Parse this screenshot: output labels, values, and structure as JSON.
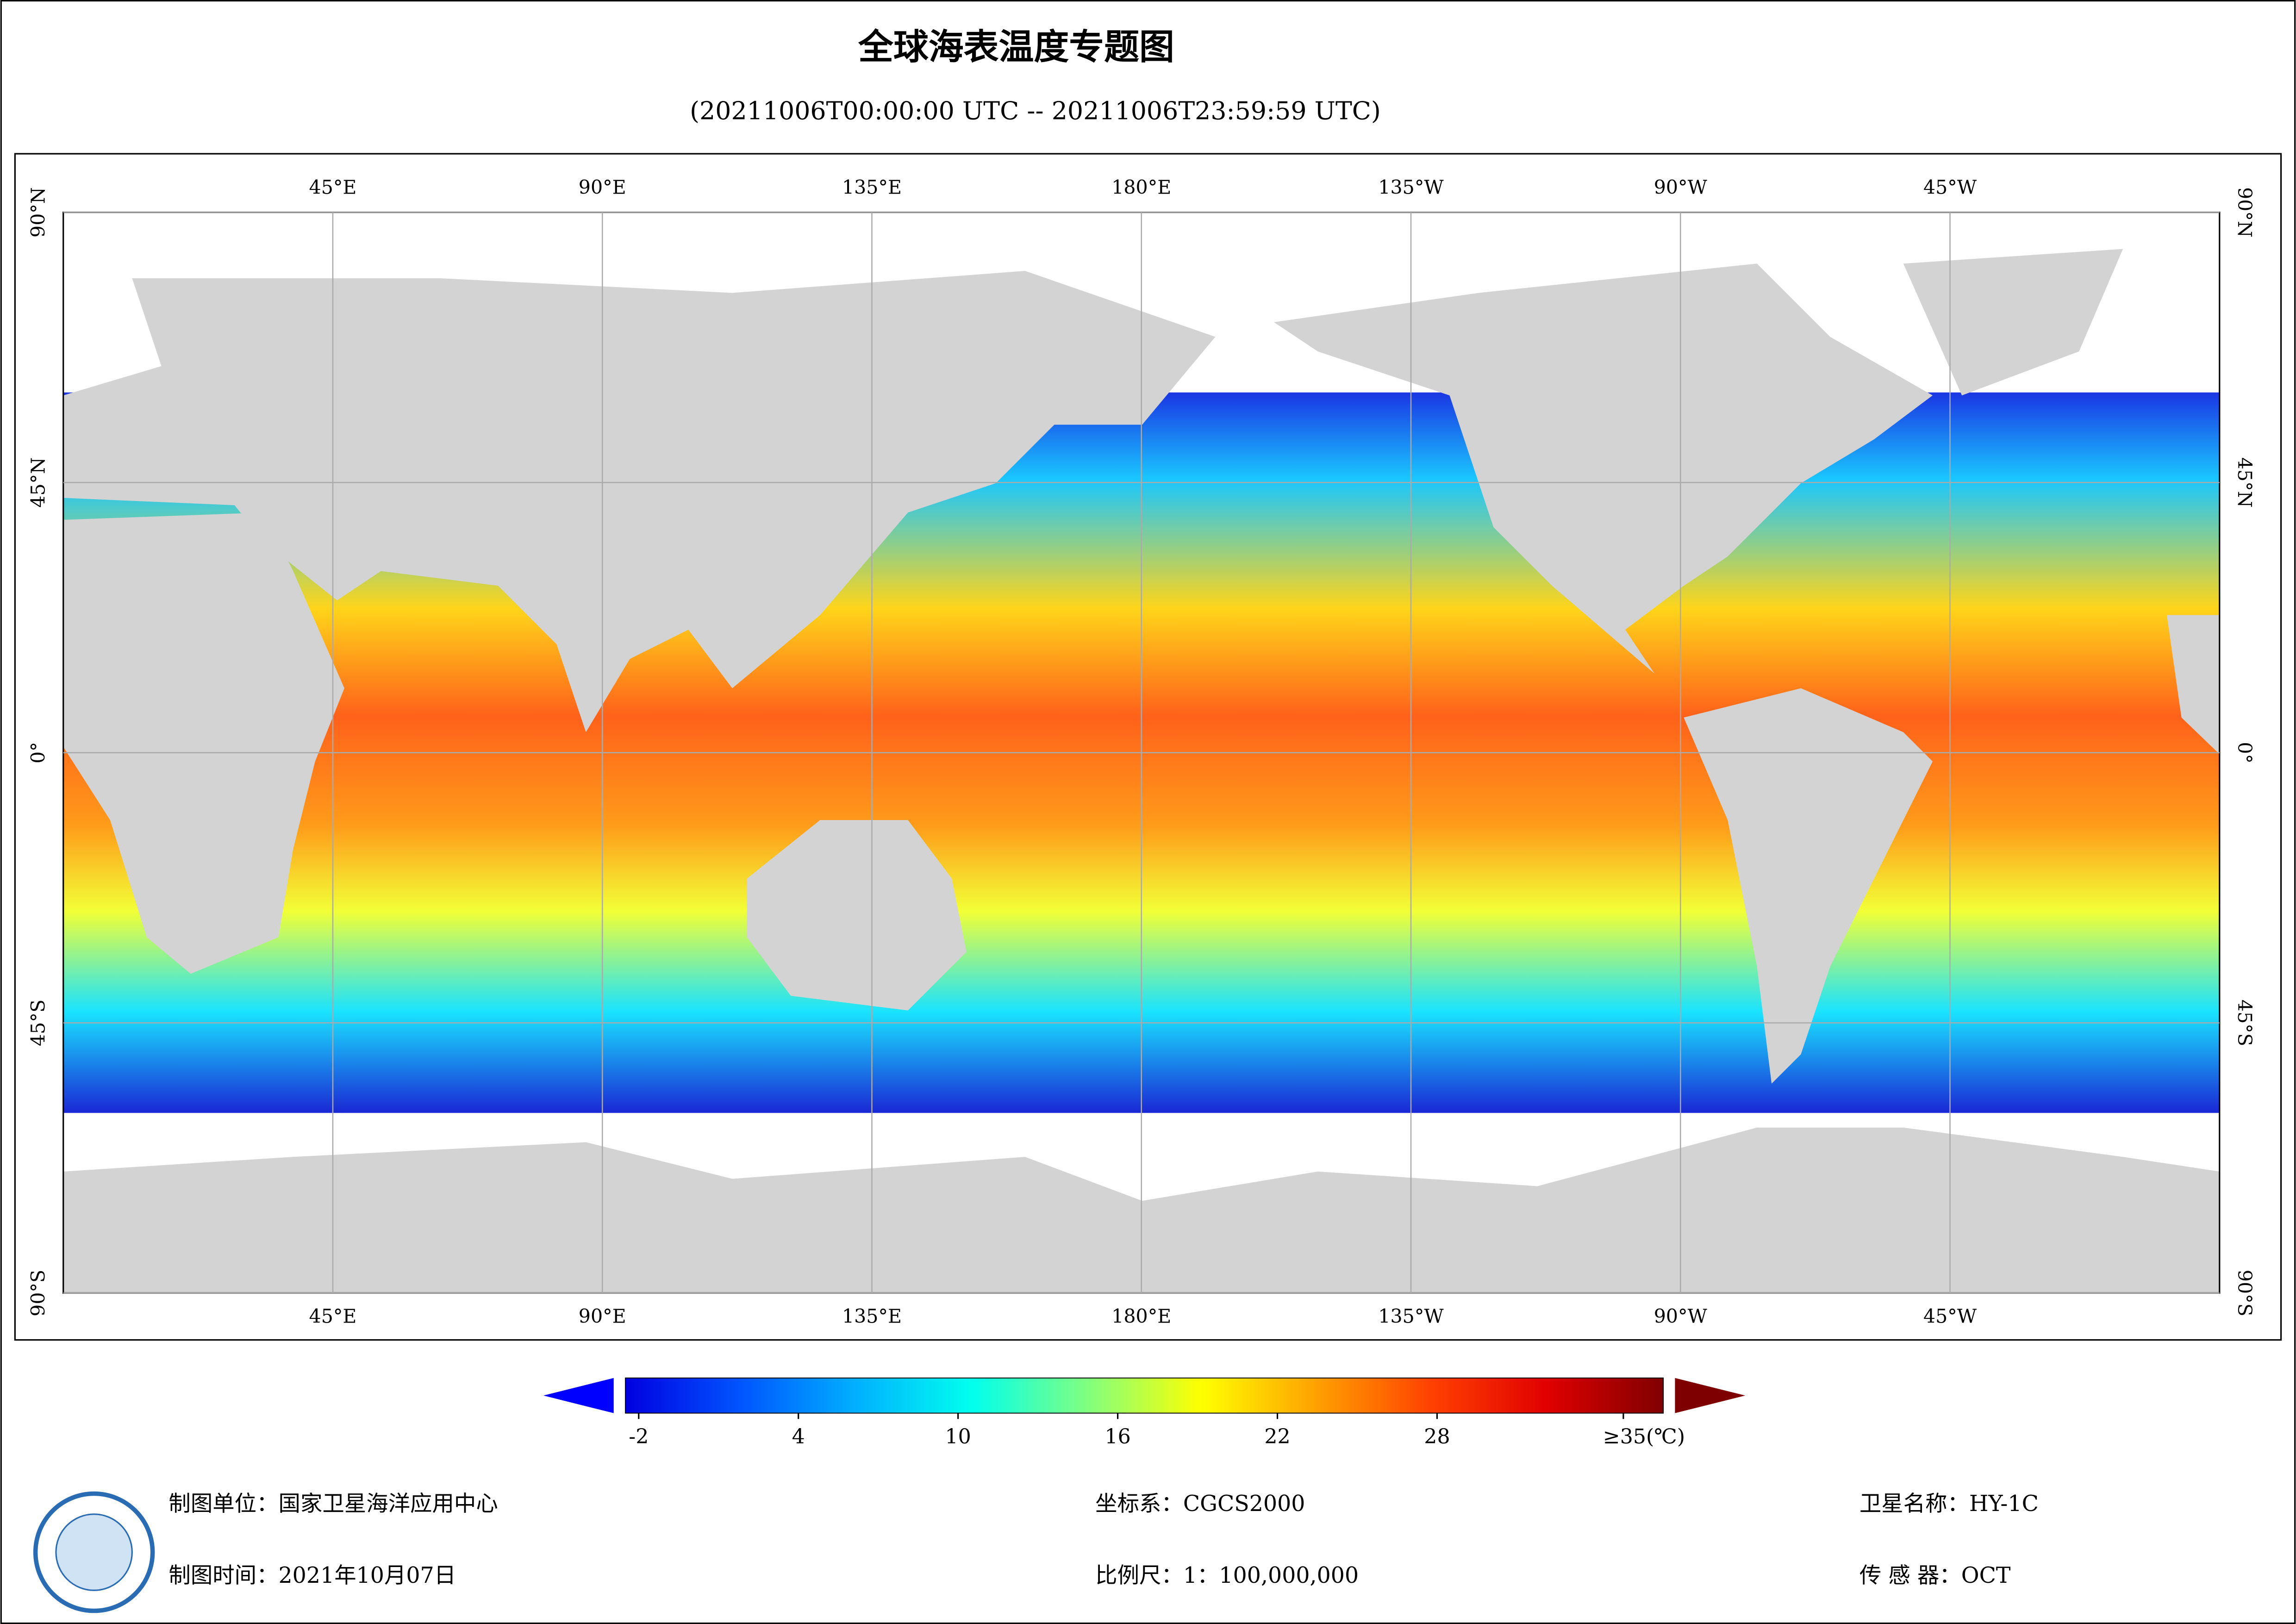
{
  "title": "全球海表温度专题图",
  "subtitle": "(20211006T00:00:00 UTC -- 20211006T23:59:59 UTC)",
  "map": {
    "lon_range": [
      0,
      360
    ],
    "lat_range": [
      -90,
      90
    ],
    "lon_ticks": [
      {
        "value": 45,
        "label": "45°E"
      },
      {
        "value": 90,
        "label": "90°E"
      },
      {
        "value": 135,
        "label": "135°E"
      },
      {
        "value": 180,
        "label": "180°E"
      },
      {
        "value": 225,
        "label": "135°W"
      },
      {
        "value": 270,
        "label": "90°W"
      },
      {
        "value": 315,
        "label": "45°W"
      }
    ],
    "lat_ticks": [
      {
        "value": 90,
        "label": "90°N"
      },
      {
        "value": 45,
        "label": "45°N"
      },
      {
        "value": 0,
        "label": "0°"
      },
      {
        "value": -45,
        "label": "45°S"
      },
      {
        "value": -90,
        "label": "90°S"
      }
    ],
    "grid": true,
    "land_color": "#d3d3d3"
  },
  "colorbar": {
    "clim": [
      -2.5,
      36.5
    ],
    "ticks": [
      -2,
      4,
      10,
      16,
      22,
      28,
      {
        "value": 35,
        "label": "≥35(℃)"
      }
    ],
    "colors": [
      "#0000e0",
      "#0055ff",
      "#00b0ff",
      "#00ffee",
      "#80ff80",
      "#ffff00",
      "#ffa000",
      "#ff4000",
      "#e00000",
      "#800000"
    ],
    "under_color": "#0000ff",
    "over_color": "#7f0000"
  },
  "footer": {
    "items": [
      "制图单位：国家卫星海洋应用中心",
      "坐标系：CGCS2000",
      "卫星名称：HY-1C",
      "制图时间：2021年10月07日",
      "比例尺：1：100,000,000",
      "传 感 器：OCT"
    ]
  }
}
